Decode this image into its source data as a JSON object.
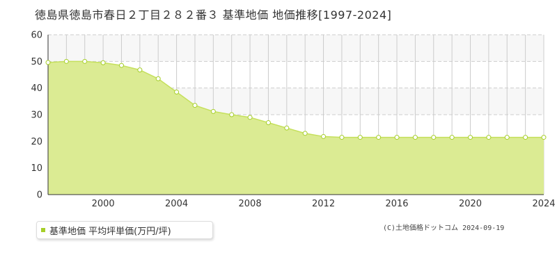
{
  "title": "徳島県徳島市春日２丁目２８２番３ 基準地価 地価推移[1997-2024]",
  "legend": {
    "label": "基準地価 平均坪単価(万円/坪)"
  },
  "copyright": "(C)土地価格ドットコム 2024-09-19",
  "colors": {
    "fill": "#dbeb93",
    "line": "#c5e05c",
    "marker": "#a6cf29",
    "grid": "#cccccc",
    "band": "#f7f7f7"
  },
  "chart_data": {
    "type": "area",
    "x": [
      1997,
      1998,
      1999,
      2000,
      2001,
      2002,
      2003,
      2004,
      2005,
      2006,
      2007,
      2008,
      2009,
      2010,
      2011,
      2012,
      2013,
      2014,
      2015,
      2016,
      2017,
      2018,
      2019,
      2020,
      2021,
      2022,
      2023,
      2024
    ],
    "series": [
      {
        "name": "基準地価 平均坪単価(万円/坪)",
        "values": [
          49.6,
          50.0,
          50.0,
          49.5,
          48.5,
          46.8,
          43.5,
          38.5,
          33.5,
          31.2,
          30.0,
          29.0,
          27.0,
          25.0,
          23.0,
          21.8,
          21.5,
          21.5,
          21.5,
          21.5,
          21.5,
          21.5,
          21.5,
          21.5,
          21.5,
          21.5,
          21.5,
          21.5
        ]
      }
    ],
    "xlim": [
      1997,
      2024
    ],
    "ylim": [
      0,
      60
    ],
    "yticks": [
      0,
      10,
      20,
      30,
      40,
      50,
      60
    ],
    "xticks": [
      2000,
      2004,
      2008,
      2012,
      2016,
      2020,
      2024
    ],
    "grid": true,
    "legend_position": "bottom-left"
  }
}
